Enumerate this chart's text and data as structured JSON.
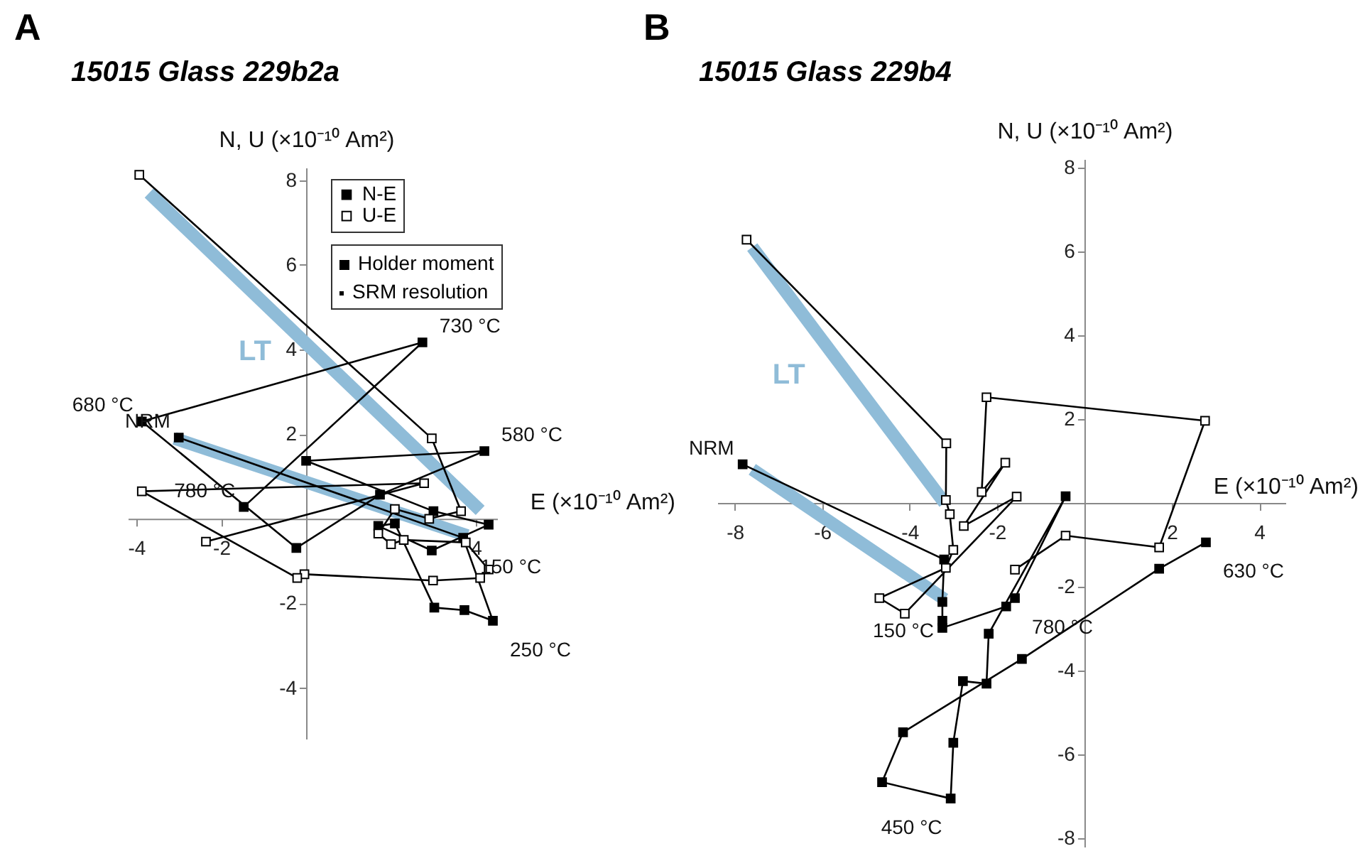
{
  "chart_data": [
    {
      "type": "line",
      "title": "A",
      "subtitle": "15015 Glass 229b2a",
      "xlabel": "E (×10⁻¹⁰ Am²)",
      "ylabel": "N, U (×10⁻¹⁰ Am²)",
      "legend": "top",
      "xlim": [
        -4.2,
        4.5
      ],
      "ylim": [
        -5.2,
        8.3
      ],
      "xticks": [
        -4,
        -2,
        {
          "value": 2,
          "label": null
        },
        4
      ],
      "yticks": [
        -4,
        -2,
        2,
        4,
        6,
        8
      ],
      "series": [
        {
          "name": "LT",
          "type": "line",
          "color": "#8fbcd8",
          "marker": "none",
          "x": [
            4.1,
            -3.7
          ],
          "values": [
            0.2,
            7.7
          ]
        },
        {
          "type": "line",
          "color": "#8fbcd8",
          "marker": "none",
          "x": [
            3.8,
            -3.1
          ],
          "values": [
            -0.4,
            1.9
          ]
        },
        {
          "name": "N-E",
          "color": "#000000",
          "marker": "square",
          "x": [
            -3.0,
            3.7,
            4.4,
            3.73,
            3.02,
            2.09,
            1.7,
            2.96,
            4.3,
            3.0,
            0,
            4.2,
            1.74,
            -0.23,
            -3.87,
            2.74,
            -1.47
          ],
          "values": [
            1.92,
            -0.45,
            -2.41,
            -2.16,
            -2.1,
            -0.11,
            -0.17,
            -0.75,
            -0.14,
            0.18,
            1.37,
            1.6,
            0.57,
            -0.69,
            2.3,
            4.17,
            0.28
          ]
        },
        {
          "name": "U-E",
          "color": "#ffffff",
          "marker": "square",
          "x": [
            -3.93,
            2.96,
            3.65,
            2.9,
            2.09,
            1.7,
            2.0,
            2.3,
            3.76,
            4.3,
            4.1,
            2.99,
            -0.04,
            -0.21,
            -3.87,
            2.78,
            -2.36
          ],
          "values": [
            8.13,
            1.9,
            0.18,
            0,
            0.23,
            -0.35,
            -0.6,
            -0.5,
            -0.56,
            -1.2,
            -1.4,
            -1.46,
            -1.31,
            -1.4,
            0.65,
            0.84,
            -0.54
          ]
        }
      ],
      "annotations": [
        {
          "text": "NRM",
          "x": -3.0,
          "y": 1.92
        },
        {
          "text": "150 °C",
          "x": 3.7,
          "y": -0.45
        },
        {
          "text": "250 °C",
          "x": 4.4,
          "y": -2.41
        },
        {
          "text": "580 °C",
          "x": 4.2,
          "y": 1.6
        },
        {
          "text": "680 °C",
          "x": -3.87,
          "y": 2.3
        },
        {
          "text": "730 °C",
          "x": 2.74,
          "y": 4.17
        },
        {
          "text": "780 °C",
          "x": -1.47,
          "y": 0.28
        },
        "Holder moment",
        "SRM resolution"
      ]
    },
    {
      "type": "line",
      "title": "B",
      "subtitle": "15015 Glass 229b4",
      "xlabel": "E (×10⁻¹⁰ Am²)",
      "ylabel": "N, U (×10⁻¹⁰ Am²)",
      "xlim": [
        -8.4,
        4.6
      ],
      "ylim": [
        -8.2,
        8.2
      ],
      "xticks": [
        -8,
        -6,
        -4,
        -2,
        2,
        4
      ],
      "yticks": [
        -8,
        -6,
        -4,
        -2,
        2,
        4,
        6,
        8
      ],
      "series": [
        {
          "name": "LT",
          "type": "line",
          "color": "#8fbcd8",
          "marker": "none",
          "x": [
            -3.2,
            -7.6
          ],
          "values": [
            0.0,
            6.1
          ]
        },
        {
          "type": "line",
          "color": "#8fbcd8",
          "marker": "none",
          "x": [
            -3.2,
            -7.6
          ],
          "values": [
            -2.3,
            0.8
          ]
        },
        {
          "color": "#000000",
          "marker": "square",
          "x": [
            -7.82,
            -3.21,
            -3.25,
            -3.25,
            -3.25,
            -1.79,
            -1.59,
            -0.43,
            -2.19,
            -2.24,
            -2.78,
            -3.0,
            -3.06,
            -4.63,
            -4.15,
            -1.43,
            1.71,
            2.78
          ],
          "values": [
            0.92,
            -1.35,
            -2.36,
            -2.81,
            -2.98,
            -2.47,
            -2.27,
            0.16,
            -3.12,
            -4.31,
            -4.25,
            -5.72,
            -7.05,
            -6.66,
            -5.47,
            -3.72,
            -1.57,
            -0.94
          ]
        },
        {
          "color": "#ffffff",
          "marker": "square",
          "x": [
            -7.73,
            -3.16,
            -3.17,
            -3.08,
            -3.0,
            -3.17,
            -4.69,
            -4.11,
            -1.55,
            -2.76,
            -1.81,
            -2.35,
            -2.24,
            2.76,
            1.71,
            -0.43,
            -1.59
          ],
          "values": [
            6.28,
            1.42,
            0.07,
            -0.27,
            -1.12,
            -1.55,
            -2.27,
            -2.64,
            0.15,
            -0.55,
            0.96,
            0.26,
            2.52,
            1.96,
            -1.06,
            -0.78,
            -1.59
          ]
        }
      ],
      "annotations": [
        {
          "text": "NRM",
          "x": -7.82,
          "y": 0.92
        },
        {
          "text": "150 °C",
          "x": -3.25,
          "y": -2.36
        },
        {
          "text": "450 °C",
          "x": -3.06,
          "y": -7.05
        },
        {
          "text": "630 °C",
          "x": 2.78,
          "y": -0.94
        },
        {
          "text": "780 °C",
          "x": -1.59,
          "y": -2.27
        }
      ]
    }
  ]
}
